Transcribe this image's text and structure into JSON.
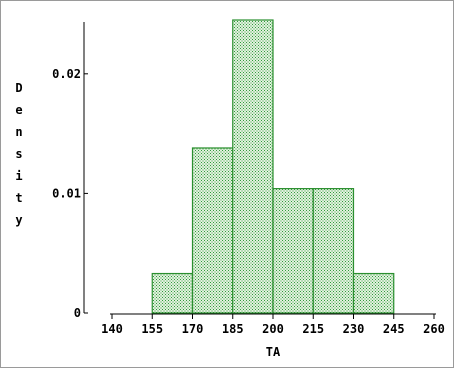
{
  "chart_data": {
    "type": "bar",
    "title": "",
    "xlabel": "TA",
    "ylabel": "Density",
    "bin_edges": [
      155,
      170,
      185,
      200,
      215,
      230,
      245
    ],
    "values": [
      0.0033,
      0.0138,
      0.0245,
      0.0104,
      0.0104,
      0.0033
    ],
    "x_ticks": [
      140,
      155,
      170,
      185,
      200,
      215,
      230,
      245,
      260
    ],
    "x_tick_labels": [
      "140",
      "155",
      "170",
      "185",
      "200",
      "215",
      "230",
      "245",
      "260"
    ],
    "y_ticks": [
      0,
      0.01,
      0.02
    ],
    "y_tick_labels": [
      "0",
      "0.01",
      "0.02"
    ],
    "xlim": [
      140,
      260
    ],
    "ylim": [
      0,
      0.0245
    ],
    "grid": false,
    "colors": {
      "bar_fill": "#2e9b3a",
      "bar_edge": "#2b8f2f",
      "bar_bg": "#d8ecd3",
      "axis": "#000000"
    }
  }
}
